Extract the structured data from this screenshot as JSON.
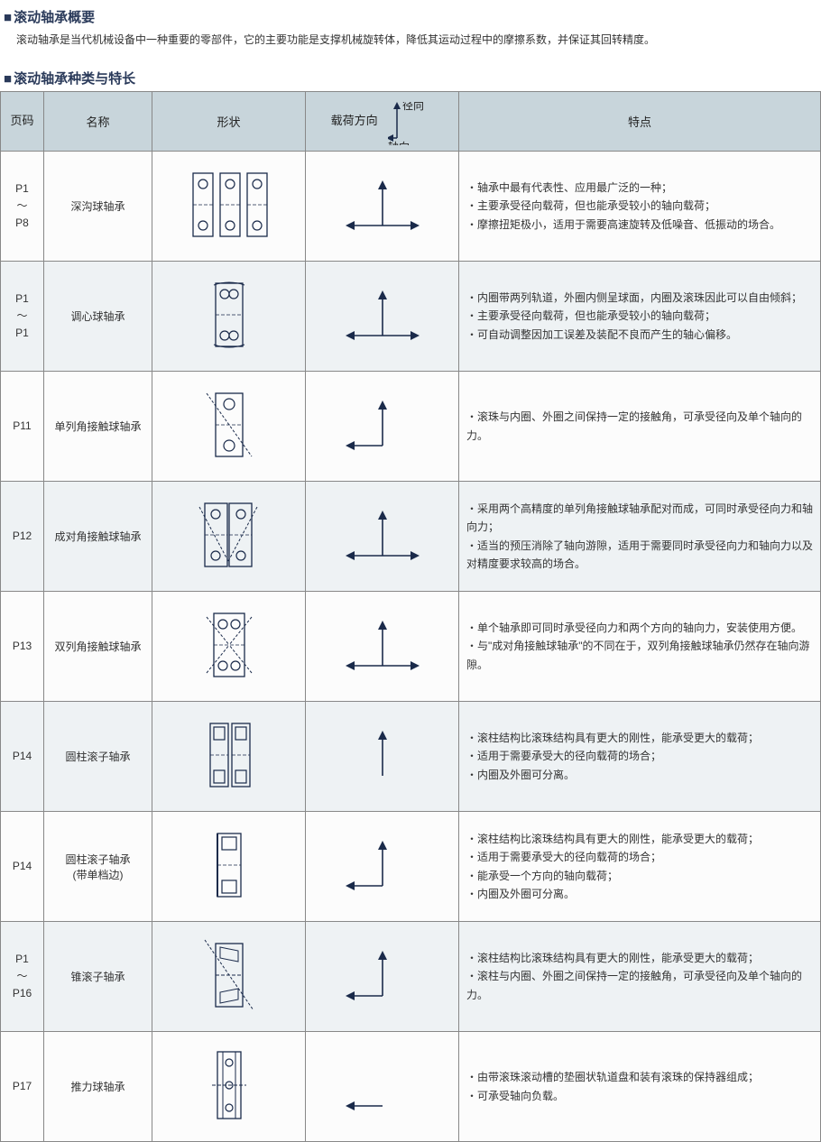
{
  "overview": {
    "title": "滚动轴承概要",
    "text": "滚动轴承是当代机械设备中一种重要的零部件，它的主要功能是支撑机械旋转体，降低其运动过程中的摩擦系数，并保证其回转精度。"
  },
  "table_title": "滚动轴承种类与特长",
  "headers": {
    "page": "页码",
    "name": "名称",
    "shape": "形状",
    "load": "载荷方向",
    "load_radial": "径向",
    "load_axial": "轴向",
    "features": "特点"
  },
  "colors": {
    "header_bg": "#c8d5db",
    "border": "#888888",
    "row_alt": "#eef2f4",
    "title": "#2a3a5a",
    "line": "#1a2a4a"
  },
  "rows": [
    {
      "page": "P1\n～\nP8",
      "name": "深沟球轴承",
      "shape": "deep-groove",
      "load": "radial-both-axial",
      "features": [
        "・轴承中最有代表性、应用最广泛的一种；",
        "・主要承受径向载荷，但也能承受较小的轴向载荷；",
        "・摩擦扭矩极小，适用于需要高速旋转及低噪音、低振动的场合。"
      ]
    },
    {
      "page": "P1\n～\nP1",
      "name": "调心球轴承",
      "shape": "self-aligning",
      "load": "radial-both-axial",
      "features": [
        "・内圈带两列轨道，外圈内侧呈球面，内圈及滚珠因此可以自由倾斜；",
        "・主要承受径向载荷，但也能承受较小的轴向载荷；",
        "・可自动调整因加工误差及装配不良而产生的轴心偏移。"
      ]
    },
    {
      "page": "P11",
      "name": "单列角接触球轴承",
      "shape": "single-angular",
      "load": "radial-one-axial",
      "features": [
        "・滚珠与内圈、外圈之间保持一定的接触角，可承受径向及单个轴向的力。"
      ]
    },
    {
      "page": "P12",
      "name": "成对角接触球轴承",
      "shape": "paired-angular",
      "load": "radial-both-axial",
      "features": [
        "・采用两个高精度的单列角接触球轴承配对而成，可同时承受径向力和轴向力；",
        "・适当的预压消除了轴向游隙，适用于需要同时承受径向力和轴向力以及对精度要求较高的场合。"
      ]
    },
    {
      "page": "P13",
      "name": "双列角接触球轴承",
      "shape": "double-angular",
      "load": "radial-both-axial",
      "features": [
        "・单个轴承即可同时承受径向力和两个方向的轴向力，安装使用方便。",
        "・与\"成对角接触球轴承\"的不同在于，双列角接触球轴承仍然存在轴向游隙。"
      ]
    },
    {
      "page": "P14",
      "name": "圆柱滚子轴承",
      "shape": "cylindrical",
      "load": "radial-only",
      "features": [
        "・滚柱结构比滚珠结构具有更大的刚性，能承受更大的载荷；",
        "・适用于需要承受大的径向载荷的场合；",
        "・内圈及外圈可分离。"
      ]
    },
    {
      "page": "P14",
      "name": "圆柱滚子轴承\n(带单档边)",
      "shape": "cylindrical-flange",
      "load": "radial-one-axial",
      "features": [
        "・滚柱结构比滚珠结构具有更大的刚性，能承受更大的载荷；",
        "・适用于需要承受大的径向载荷的场合；",
        "・能承受一个方向的轴向载荷；",
        "・内圈及外圈可分离。"
      ]
    },
    {
      "page": "P1\n～\nP16",
      "name": "锥滚子轴承",
      "shape": "tapered",
      "load": "radial-one-axial",
      "features": [
        "・滚柱结构比滚珠结构具有更大的刚性，能承受更大的载荷；",
        "・滚柱与内圈、外圈之间保持一定的接触角，可承受径向及单个轴向的力。"
      ]
    },
    {
      "page": "P17",
      "name": "推力球轴承",
      "shape": "thrust",
      "load": "axial-only",
      "features": [
        "・由带滚珠滚动槽的垫圈状轨道盘和装有滚珠的保持器组成；",
        "・可承受轴向负载。"
      ]
    }
  ]
}
